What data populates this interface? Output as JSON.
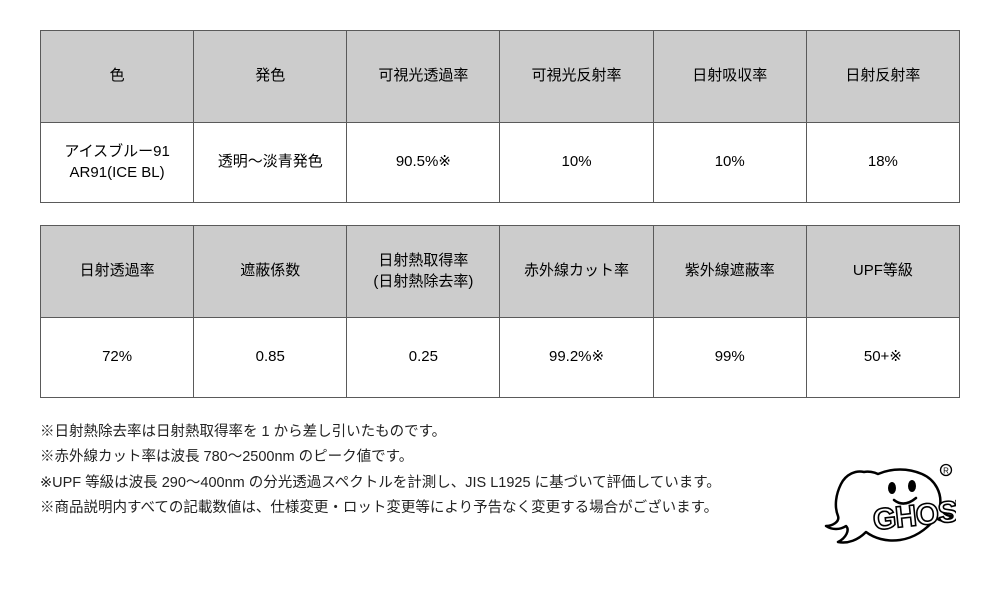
{
  "table1": {
    "headers": [
      "色",
      "発色",
      "可視光透過率",
      "可視光反射率",
      "日射吸収率",
      "日射反射率"
    ],
    "row": [
      "アイスブルー91\nAR91(ICE BL)",
      "透明〜淡青発色",
      "90.5%※",
      "10%",
      "10%",
      "18%"
    ]
  },
  "table2": {
    "headers": [
      "日射透過率",
      "遮蔽係数",
      "日射熱取得率\n(日射熱除去率)",
      "赤外線カット率",
      "紫外線遮蔽率",
      "UPF等級"
    ],
    "row": [
      "72%",
      "0.85",
      "0.25",
      "99.2%※",
      "99%",
      "50+※"
    ]
  },
  "notes": [
    "※日射熱除去率は日射熱取得率を 1 から差し引いたものです。",
    "※赤外線カット率は波長 780〜2500nm のピーク値です。",
    "※UPF 等級は波長 290〜400nm の分光透過スペクトルを計測し、JIS L1925 に基づいて評価しています。",
    "※商品説明内すべての記載数値は、仕様変更・ロット変更等により予告なく変更する場合がございます。"
  ],
  "logo": {
    "text": "GHOST",
    "stroke": "#000000",
    "fill": "#ffffff"
  },
  "colors": {
    "header_bg": "#cccccc",
    "cell_bg": "#ffffff",
    "border": "#5a5a5a",
    "text": "#222222"
  }
}
